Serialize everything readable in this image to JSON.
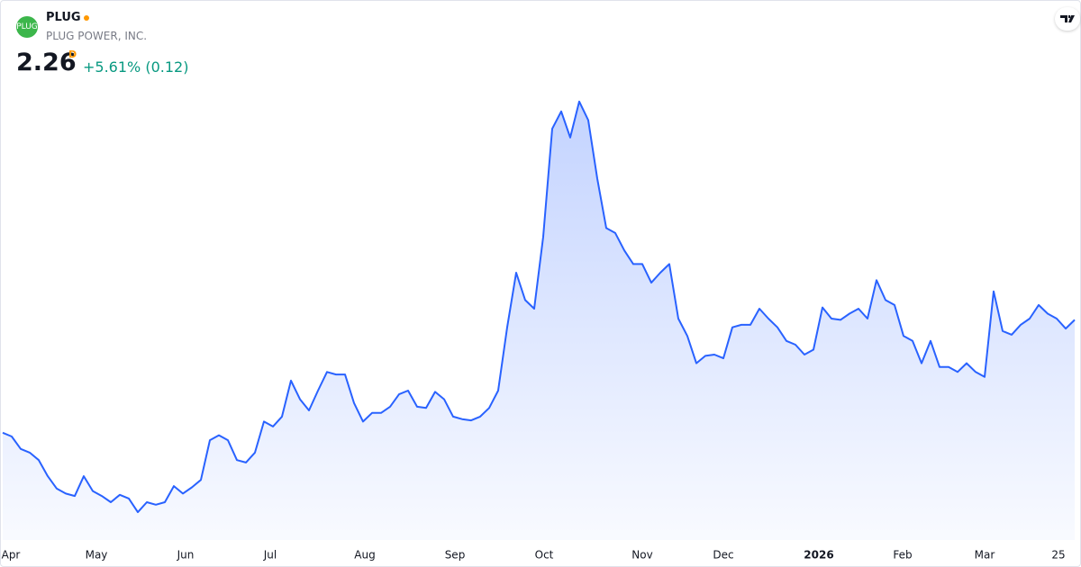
{
  "header": {
    "symbol": "PLUG",
    "name": "PLUG POWER, INC.",
    "price": "2.26",
    "interval": "D",
    "change": "+5.61% (0.12)"
  },
  "chart_data": {
    "type": "area",
    "color": "#2962ff",
    "xlim": [
      0,
      119
    ],
    "ylim": [
      0.5,
      4.2
    ],
    "xticks": [
      {
        "value": 0.8,
        "label": "Apr"
      },
      {
        "value": 10.4,
        "label": "May"
      },
      {
        "value": 20.3,
        "label": "Jun"
      },
      {
        "value": 29.7,
        "label": "Jul"
      },
      {
        "value": 40.2,
        "label": "Aug"
      },
      {
        "value": 50.2,
        "label": "Sep"
      },
      {
        "value": 60.1,
        "label": "Oct"
      },
      {
        "value": 71,
        "label": "Nov"
      },
      {
        "value": 80,
        "label": "Dec"
      },
      {
        "value": 90.6,
        "label": "2026"
      },
      {
        "value": 99.9,
        "label": "Feb"
      },
      {
        "value": 109,
        "label": "Mar"
      },
      {
        "value": 117.2,
        "label": "25"
      }
    ],
    "values": [
      1.35,
      1.32,
      1.22,
      1.19,
      1.13,
      1.0,
      0.9,
      0.86,
      0.84,
      1.0,
      0.88,
      0.84,
      0.79,
      0.85,
      0.82,
      0.71,
      0.79,
      0.77,
      0.79,
      0.92,
      0.86,
      0.91,
      0.97,
      1.29,
      1.33,
      1.29,
      1.13,
      1.11,
      1.19,
      1.44,
      1.4,
      1.48,
      1.77,
      1.62,
      1.53,
      1.69,
      1.84,
      1.82,
      1.82,
      1.59,
      1.44,
      1.51,
      1.51,
      1.56,
      1.66,
      1.69,
      1.56,
      1.55,
      1.68,
      1.62,
      1.48,
      1.46,
      1.45,
      1.48,
      1.55,
      1.69,
      2.2,
      2.64,
      2.42,
      2.35,
      2.93,
      3.8,
      3.94,
      3.73,
      4.02,
      3.87,
      3.4,
      3.0,
      2.96,
      2.82,
      2.71,
      2.71,
      2.56,
      2.64,
      2.71,
      2.27,
      2.13,
      1.91,
      1.97,
      1.98,
      1.95,
      2.2,
      2.22,
      2.22,
      2.35,
      2.27,
      2.2,
      2.09,
      2.06,
      1.98,
      2.02,
      2.36,
      2.27,
      2.26,
      2.31,
      2.35,
      2.27,
      2.58,
      2.42,
      2.38,
      2.13,
      2.09,
      1.91,
      2.09,
      1.88,
      1.88,
      1.84,
      1.91,
      1.84,
      1.8,
      2.49,
      2.17,
      2.14,
      2.22,
      2.27,
      2.38,
      2.31,
      2.27,
      2.19,
      2.26
    ]
  }
}
